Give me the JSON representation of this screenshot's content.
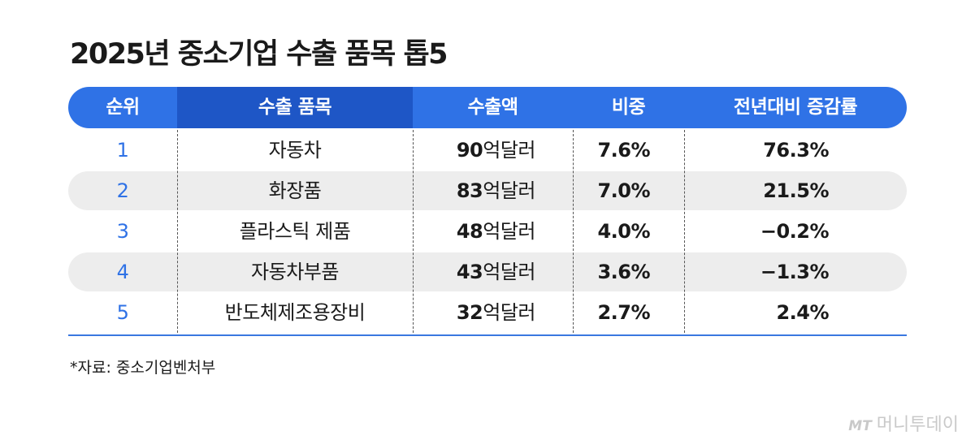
{
  "title": "2025년 중소기업 수출 품목 톱5",
  "table": {
    "header": [
      "순위",
      "수출 품목",
      "수출액",
      "비중",
      "전년대비 증감률"
    ],
    "rows": [
      [
        "1",
        "자동차",
        "90억달러",
        "7.6%",
        "76.3%"
      ],
      [
        "2",
        "화장품",
        "83억달러",
        "7.0%",
        "21.5%"
      ],
      [
        "3",
        "플라스틱 제품",
        "48억달러",
        "4.0%",
        "−0.2%"
      ],
      [
        "4",
        "자동차부품",
        "43억달러",
        "3.6%",
        "−1.3%"
      ],
      [
        "5",
        "반도체제조용장비",
        "32억달러",
        "2.7%",
        "2.4%"
      ]
    ]
  },
  "source": "*자료: 중소기업벤처부",
  "watermark": {
    "logo": "MT",
    "name": "머니투데이"
  }
}
